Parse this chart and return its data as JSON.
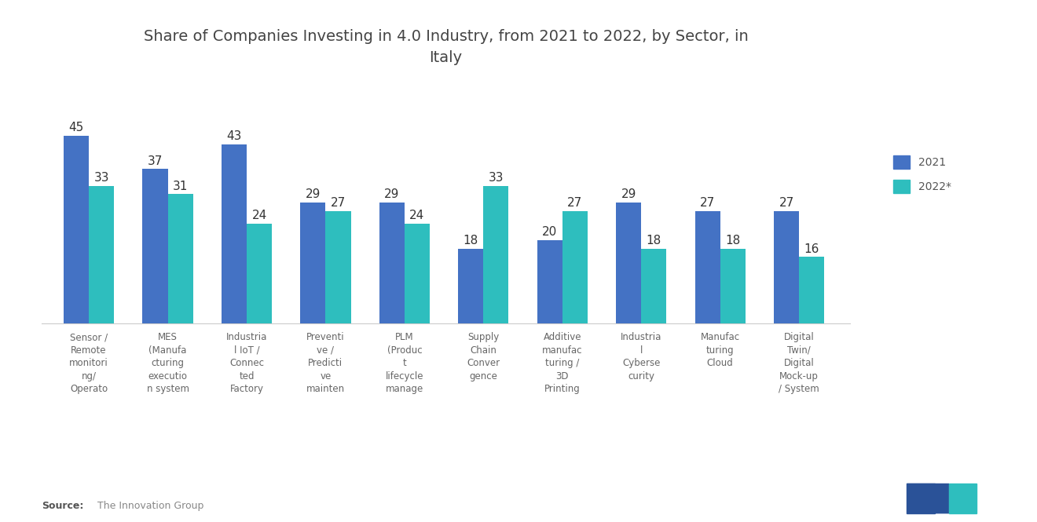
{
  "title": "Share of Companies Investing in 4.0 Industry, from 2021 to 2022, by Sector, in\nItaly",
  "categories": [
    "Sensor /\nRemote\nmonitori\nng/\nOperato",
    "MES\n(Manufa\ncturing\nexecutio\nn system",
    "Industria\nl IoT /\nConnec\nted\nFactory",
    "Preventi\nve /\nPredicti\nve\nmainten",
    "PLM\n(Produc\nt\nlifecycle\nmanage",
    "Supply\nChain\nConver\ngence",
    "Additive\nmanufac\nturing /\n3D\nPrinting",
    "Industria\nl\nCyberse\ncurity",
    "Manufac\nturing\nCloud",
    "Digital\nTwin/\nDigital\nMock-up\n/ System"
  ],
  "values_2021": [
    45,
    37,
    43,
    29,
    29,
    18,
    20,
    29,
    27,
    27
  ],
  "values_2022": [
    33,
    31,
    24,
    27,
    24,
    33,
    27,
    18,
    18,
    16
  ],
  "color_2021": "#4472C4",
  "color_2022": "#2EBEBE",
  "legend_2021": "2021",
  "legend_2022": "2022*",
  "source_bold": "Source:",
  "source_rest": "  The Innovation Group",
  "ylim": [
    0,
    55
  ],
  "bar_width": 0.32,
  "title_fontsize": 14,
  "tick_fontsize": 8.5,
  "value_fontsize": 11,
  "legend_fontsize": 10,
  "background_color": "#ffffff"
}
